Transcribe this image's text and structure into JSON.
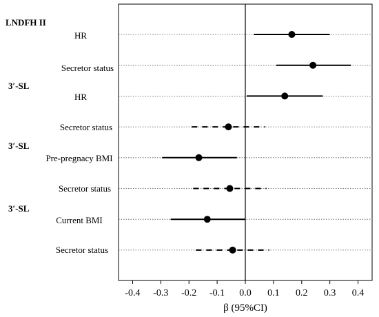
{
  "chart_data": {
    "type": "forest",
    "xlabel": "β (95%CI)",
    "xlim": [
      -0.45,
      0.45
    ],
    "xticks": [
      -0.4,
      -0.3,
      -0.2,
      -0.1,
      0.0,
      0.1,
      0.2,
      0.3,
      0.4
    ],
    "xtick_labels": [
      "-0.4",
      "-0.3",
      "-0.2",
      "-0.1",
      "0.0",
      "0.1",
      "0.2",
      "0.3",
      "0.4"
    ],
    "reference_line": 0,
    "groups": [
      {
        "label": "LNDFH II",
        "rows": [
          0,
          1
        ]
      },
      {
        "label": "3′-SL",
        "rows": [
          2,
          3
        ]
      },
      {
        "label": "3′-SL",
        "rows": [
          4,
          5
        ]
      },
      {
        "label": "3′-SL",
        "rows": [
          6,
          7
        ]
      }
    ],
    "rows": [
      {
        "label": "HR",
        "beta": 0.165,
        "lower": 0.03,
        "upper": 0.3,
        "style": "solid"
      },
      {
        "label": "Secretor status",
        "beta": 0.24,
        "lower": 0.11,
        "upper": 0.375,
        "style": "solid"
      },
      {
        "label": "HR",
        "beta": 0.14,
        "lower": 0.005,
        "upper": 0.275,
        "style": "solid"
      },
      {
        "label": "Secretor status",
        "beta": -0.06,
        "lower": -0.19,
        "upper": 0.07,
        "style": "dashed"
      },
      {
        "label": "Pre-pregnacy BMI",
        "beta": -0.165,
        "lower": -0.295,
        "upper": -0.03,
        "style": "solid"
      },
      {
        "label": "Secretor status",
        "beta": -0.055,
        "lower": -0.185,
        "upper": 0.075,
        "style": "dashed"
      },
      {
        "label": "Current BMI",
        "beta": -0.135,
        "lower": -0.265,
        "upper": 0.0,
        "style": "solid"
      },
      {
        "label": "Secretor status",
        "beta": -0.045,
        "lower": -0.175,
        "upper": 0.085,
        "style": "dashed"
      }
    ]
  }
}
